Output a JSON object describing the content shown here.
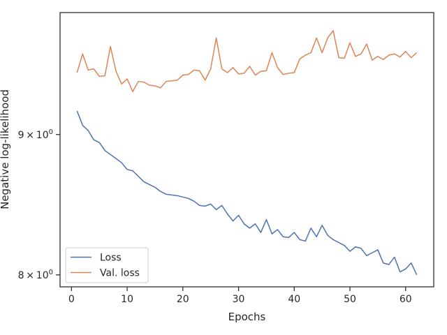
{
  "chart_data": {
    "type": "line",
    "xlabel": "Epochs",
    "ylabel": "Negative log-likelihood",
    "y_scale": "log",
    "grid": false,
    "legend_position": "lower-left",
    "xlim": [
      -2.05,
      65.05
    ],
    "ylim": [
      7.92,
      9.97
    ],
    "x_ticks": [
      0,
      10,
      20,
      30,
      40,
      50,
      60
    ],
    "y_ticks": [
      {
        "value": 9,
        "base": "9",
        "mult": "×",
        "pow": "10",
        "exp": "0"
      },
      {
        "value": 8,
        "base": "8",
        "mult": "×",
        "pow": "10",
        "exp": "0"
      }
    ],
    "x": [
      1,
      2,
      3,
      4,
      5,
      6,
      7,
      8,
      9,
      10,
      11,
      12,
      13,
      14,
      15,
      16,
      17,
      18,
      19,
      20,
      21,
      22,
      23,
      24,
      25,
      26,
      27,
      28,
      29,
      30,
      31,
      32,
      33,
      34,
      35,
      36,
      37,
      38,
      39,
      40,
      41,
      42,
      43,
      44,
      45,
      46,
      47,
      48,
      49,
      50,
      51,
      52,
      53,
      54,
      55,
      56,
      57,
      58,
      59,
      60,
      61,
      62
    ],
    "series": [
      {
        "name": "Loss",
        "color": "#4c72b0",
        "values": [
          9.18,
          9.07,
          9.03,
          8.96,
          8.94,
          8.88,
          8.85,
          8.82,
          8.79,
          8.74,
          8.73,
          8.69,
          8.65,
          8.63,
          8.61,
          8.58,
          8.56,
          8.555,
          8.55,
          8.54,
          8.53,
          8.51,
          8.48,
          8.475,
          8.49,
          8.45,
          8.48,
          8.42,
          8.37,
          8.41,
          8.35,
          8.32,
          8.35,
          8.29,
          8.38,
          8.28,
          8.31,
          8.26,
          8.255,
          8.29,
          8.24,
          8.23,
          8.32,
          8.26,
          8.34,
          8.27,
          8.24,
          8.22,
          8.2,
          8.16,
          8.19,
          8.18,
          8.13,
          8.15,
          8.17,
          8.08,
          8.07,
          8.12,
          8.02,
          8.04,
          8.08,
          8.0
        ]
      },
      {
        "name": "Val. loss",
        "color": "#dd8452",
        "values": [
          9.48,
          9.63,
          9.5,
          9.51,
          9.45,
          9.455,
          9.69,
          9.49,
          9.39,
          9.43,
          9.33,
          9.41,
          9.405,
          9.38,
          9.375,
          9.36,
          9.41,
          9.415,
          9.42,
          9.46,
          9.465,
          9.5,
          9.495,
          9.42,
          9.51,
          9.76,
          9.51,
          9.48,
          9.52,
          9.47,
          9.475,
          9.53,
          9.46,
          9.49,
          9.495,
          9.64,
          9.52,
          9.465,
          9.475,
          9.48,
          9.59,
          9.62,
          9.64,
          9.76,
          9.64,
          9.76,
          9.82,
          9.6,
          9.595,
          9.72,
          9.61,
          9.63,
          9.71,
          9.58,
          9.61,
          9.585,
          9.62,
          9.63,
          9.605,
          9.65,
          9.6,
          9.64
        ]
      }
    ]
  }
}
